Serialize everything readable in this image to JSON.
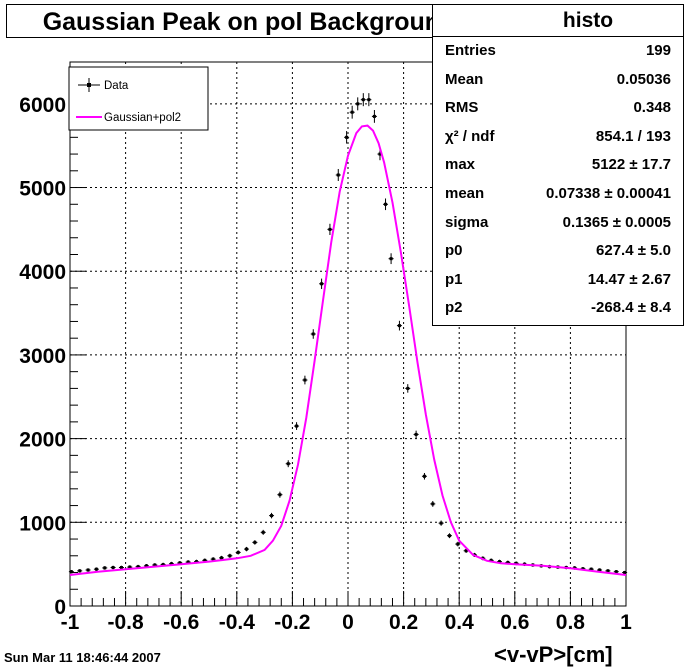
{
  "chart_data": {
    "type": "scatter",
    "title": "Gaussian Peak on pol Background",
    "xlabel": "<v-vP>[cm]",
    "ylabel": "",
    "xlim": [
      -1,
      1
    ],
    "ylim": [
      0,
      6500
    ],
    "grid": true,
    "x_ticks": [
      "-1",
      "-0.8",
      "-0.6",
      "-0.4",
      "-0.2",
      "0",
      "0.2",
      "0.4",
      "0.6",
      "0.8",
      "1"
    ],
    "y_ticks": [
      "0",
      "1000",
      "2000",
      "3000",
      "4000",
      "5000",
      "6000"
    ],
    "legend": {
      "placement": "top-left",
      "entries": [
        {
          "label": "Data",
          "color": "#000000",
          "style": "points with error bars"
        },
        {
          "label": "Gaussian+pol2",
          "color": "#ff00ff",
          "style": "line"
        }
      ]
    },
    "series": [
      {
        "name": "Data",
        "x": [
          -0.995,
          -0.965,
          -0.935,
          -0.905,
          -0.875,
          -0.845,
          -0.815,
          -0.785,
          -0.755,
          -0.725,
          -0.695,
          -0.665,
          -0.635,
          -0.605,
          -0.575,
          -0.545,
          -0.515,
          -0.485,
          -0.455,
          -0.425,
          -0.395,
          -0.365,
          -0.335,
          -0.305,
          -0.275,
          -0.245,
          -0.215,
          -0.185,
          -0.155,
          -0.125,
          -0.095,
          -0.065,
          -0.035,
          -0.005,
          0.015,
          0.035,
          0.055,
          0.075,
          0.095,
          0.115,
          0.135,
          0.155,
          0.185,
          0.215,
          0.245,
          0.275,
          0.305,
          0.335,
          0.365,
          0.395,
          0.425,
          0.455,
          0.485,
          0.515,
          0.545,
          0.575,
          0.605,
          0.635,
          0.665,
          0.695,
          0.725,
          0.755,
          0.785,
          0.815,
          0.845,
          0.875,
          0.905,
          0.935,
          0.965,
          0.995
        ],
        "y": [
          410,
          420,
          430,
          440,
          455,
          460,
          460,
          465,
          470,
          480,
          490,
          495,
          505,
          515,
          525,
          530,
          545,
          560,
          575,
          600,
          640,
          680,
          760,
          880,
          1080,
          1330,
          1700,
          2150,
          2700,
          3250,
          3850,
          4500,
          5150,
          5600,
          5900,
          6000,
          6050,
          6050,
          5850,
          5400,
          4800,
          4150,
          3350,
          2600,
          2050,
          1550,
          1220,
          990,
          840,
          740,
          660,
          610,
          570,
          545,
          530,
          520,
          510,
          500,
          490,
          480,
          470,
          465,
          460,
          455,
          445,
          440,
          430,
          420,
          410,
          400
        ]
      },
      {
        "name": "Gaussian+pol2",
        "x": [
          -1.0,
          -0.9,
          -0.8,
          -0.7,
          -0.6,
          -0.5,
          -0.45,
          -0.4,
          -0.35,
          -0.3,
          -0.27,
          -0.24,
          -0.21,
          -0.18,
          -0.15,
          -0.12,
          -0.09,
          -0.06,
          -0.03,
          0.0,
          0.03,
          0.05,
          0.07,
          0.09,
          0.11,
          0.13,
          0.16,
          0.19,
          0.22,
          0.25,
          0.28,
          0.31,
          0.34,
          0.37,
          0.4,
          0.45,
          0.5,
          0.55,
          0.6,
          0.7,
          0.8,
          0.9,
          1.0
        ],
        "y": [
          370,
          410,
          440,
          470,
          500,
          530,
          550,
          570,
          600,
          670,
          780,
          960,
          1260,
          1690,
          2250,
          2930,
          3650,
          4350,
          4950,
          5380,
          5650,
          5730,
          5740,
          5680,
          5530,
          5300,
          4820,
          4230,
          3580,
          2910,
          2290,
          1750,
          1320,
          1000,
          780,
          610,
          540,
          510,
          500,
          480,
          450,
          410,
          370
        ]
      }
    ]
  },
  "stats": {
    "name": "histo",
    "rows": [
      {
        "key": "Entries",
        "value": "199"
      },
      {
        "key": "Mean",
        "value": "0.05036"
      },
      {
        "key": "RMS",
        "value": "0.348"
      },
      {
        "key": "χ² / ndf",
        "value": "854.1 / 193"
      },
      {
        "key": "max",
        "value": "5122 ± 17.7"
      },
      {
        "key": "mean",
        "value": "0.07338 ± 0.00041"
      },
      {
        "key": "sigma",
        "value": "0.1365 ± 0.0005"
      },
      {
        "key": "p0",
        "value": "627.4 ± 5.0"
      },
      {
        "key": "p1",
        "value": "14.47 ± 2.67"
      },
      {
        "key": "p2",
        "value": "-268.4 ± 8.4"
      }
    ]
  },
  "timestamp": "Sun Mar 11 18:46:44 2007"
}
